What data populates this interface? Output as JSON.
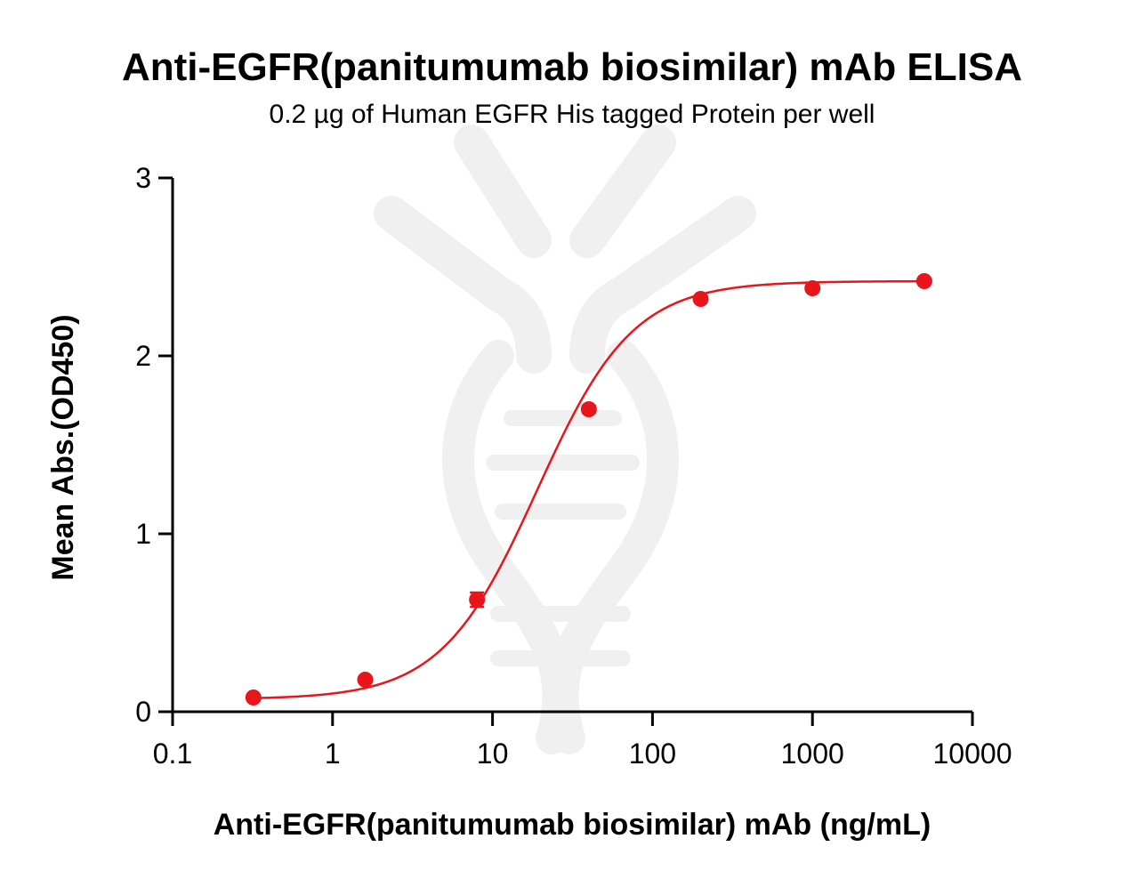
{
  "chart_data": {
    "type": "scatter",
    "title": "Anti-EGFR(panitumumab biosimilar) mAb ELISA",
    "subtitle": "0.2 µg of Human EGFR His tagged Protein per well",
    "xlabel": "Anti-EGFR(panitumumab biosimilar) mAb (ng/mL)",
    "ylabel": "Mean Abs.(OD450)",
    "x_scale": "log",
    "xlim": [
      0.1,
      10000
    ],
    "ylim": [
      0,
      3
    ],
    "x_ticks": [
      "0.1",
      "1",
      "10",
      "100",
      "1000",
      "10000"
    ],
    "y_ticks": [
      "0",
      "1",
      "2",
      "3"
    ],
    "grid": false,
    "series": [
      {
        "color": "#e8161b",
        "x": [
          0.32,
          1.6,
          8,
          40,
          200,
          1000,
          5000
        ],
        "y": [
          0.08,
          0.18,
          0.63,
          1.7,
          2.32,
          2.38,
          2.42
        ],
        "error": [
          0.01,
          0.01,
          0.04,
          0.02,
          0.01,
          0.01,
          0.01
        ],
        "fit": "four-parameter logistic"
      }
    ]
  }
}
